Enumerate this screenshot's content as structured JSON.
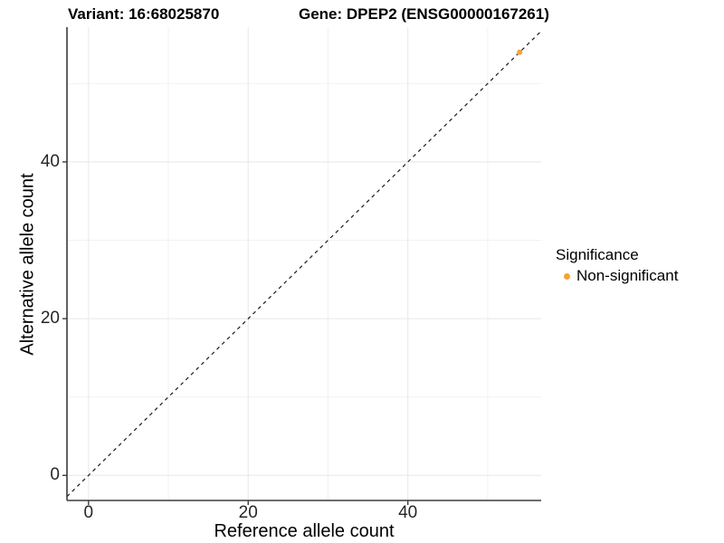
{
  "title": {
    "variant": "Variant: 16:68025870",
    "gene": "Gene: DPEP2 (ENSG00000167261)"
  },
  "chart_data": {
    "type": "scatter",
    "title_left": "Variant: 16:68025870",
    "title_right": "Gene: DPEP2 (ENSG00000167261)",
    "xlabel": "Reference allele count",
    "ylabel": "Alternative allele count",
    "xlim": [
      -2.7,
      56.7
    ],
    "ylim": [
      -3.2,
      57.2
    ],
    "x_major_ticks": [
      0,
      20,
      40
    ],
    "x_minor_ticks": [
      10,
      30,
      50
    ],
    "y_major_ticks": [
      0,
      20,
      40
    ],
    "y_minor_ticks": [
      10,
      30,
      50
    ],
    "grid": true,
    "legend_position": "right",
    "legend_title": "Significance",
    "identity_line": {
      "type": "y=x",
      "style": "dashed",
      "color": "#1A1A1A"
    },
    "series": [
      {
        "name": "Non-significant",
        "color": "#F8A232",
        "points": [
          {
            "x": 54,
            "y": 54
          }
        ]
      }
    ]
  },
  "colors": {
    "point_orange": "#F8A232",
    "grid_major": "#E8E8E8",
    "grid_minor": "#F2F2F2",
    "axis_line": "#3C3C3C",
    "dashed_line": "#1A1A1A",
    "background": "#FFFFFF"
  }
}
